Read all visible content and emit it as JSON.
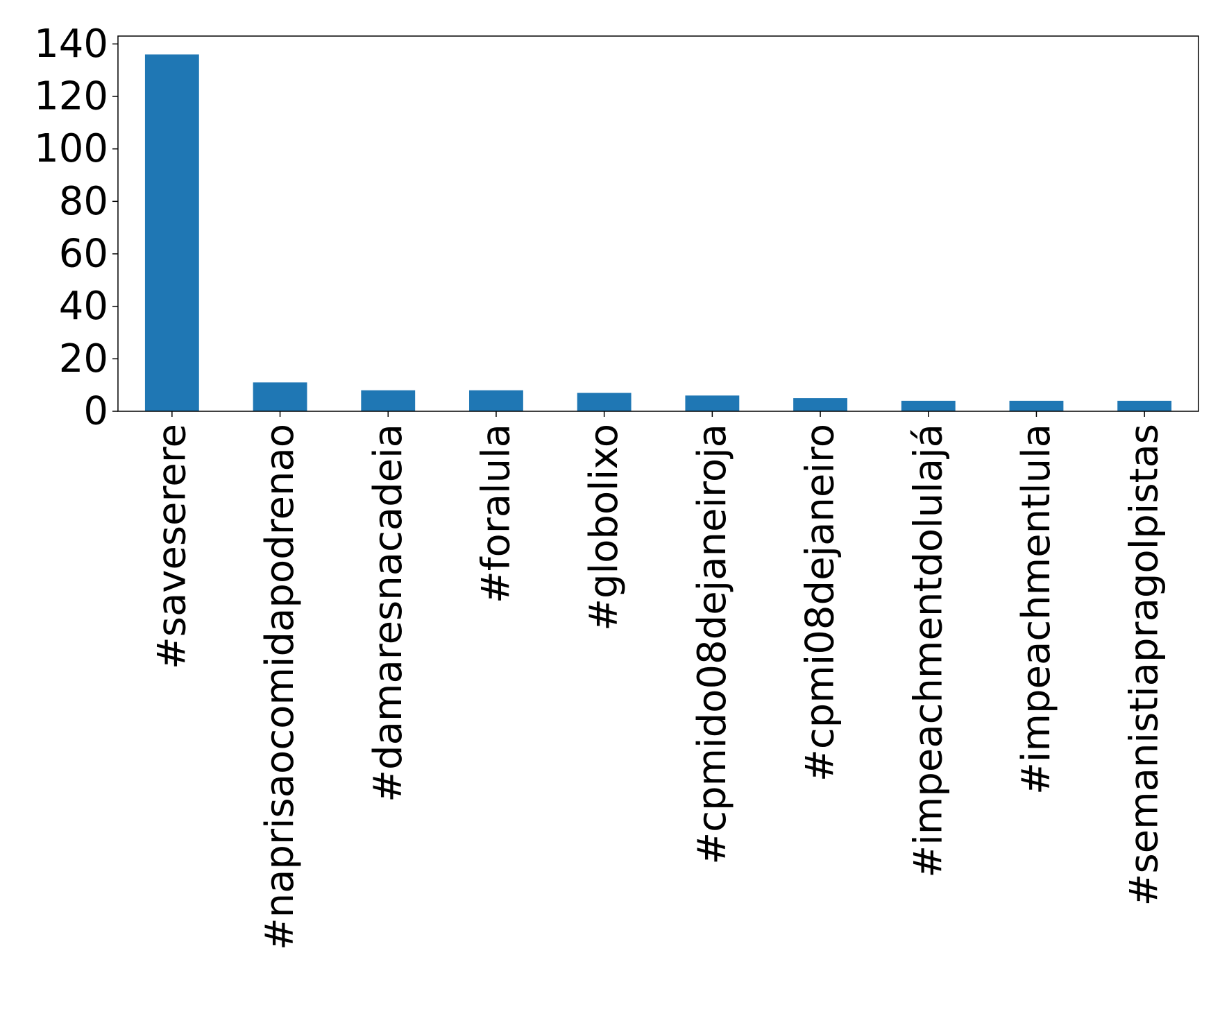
{
  "chart_data": {
    "type": "bar",
    "title": "",
    "xlabel": "",
    "ylabel": "",
    "categories": [
      "#saveserere",
      "#naprisaocomidapodrenao",
      "#damaresnacadeia",
      "#foralula",
      "#globolixo",
      "#cpmido08dejaneiroja",
      "#cpmi08dejaneiro",
      "#impeachmentdolulajá",
      "#impeachmentlula",
      "#semanistiapragolpistas"
    ],
    "values": [
      136,
      11,
      8,
      8,
      7,
      6,
      5,
      4,
      4,
      4
    ],
    "ylim": [
      0,
      143
    ],
    "yticks": [
      0,
      20,
      40,
      60,
      80,
      100,
      120,
      140
    ],
    "bar_color": "#1f77b4",
    "grid": false,
    "legend": "none"
  }
}
